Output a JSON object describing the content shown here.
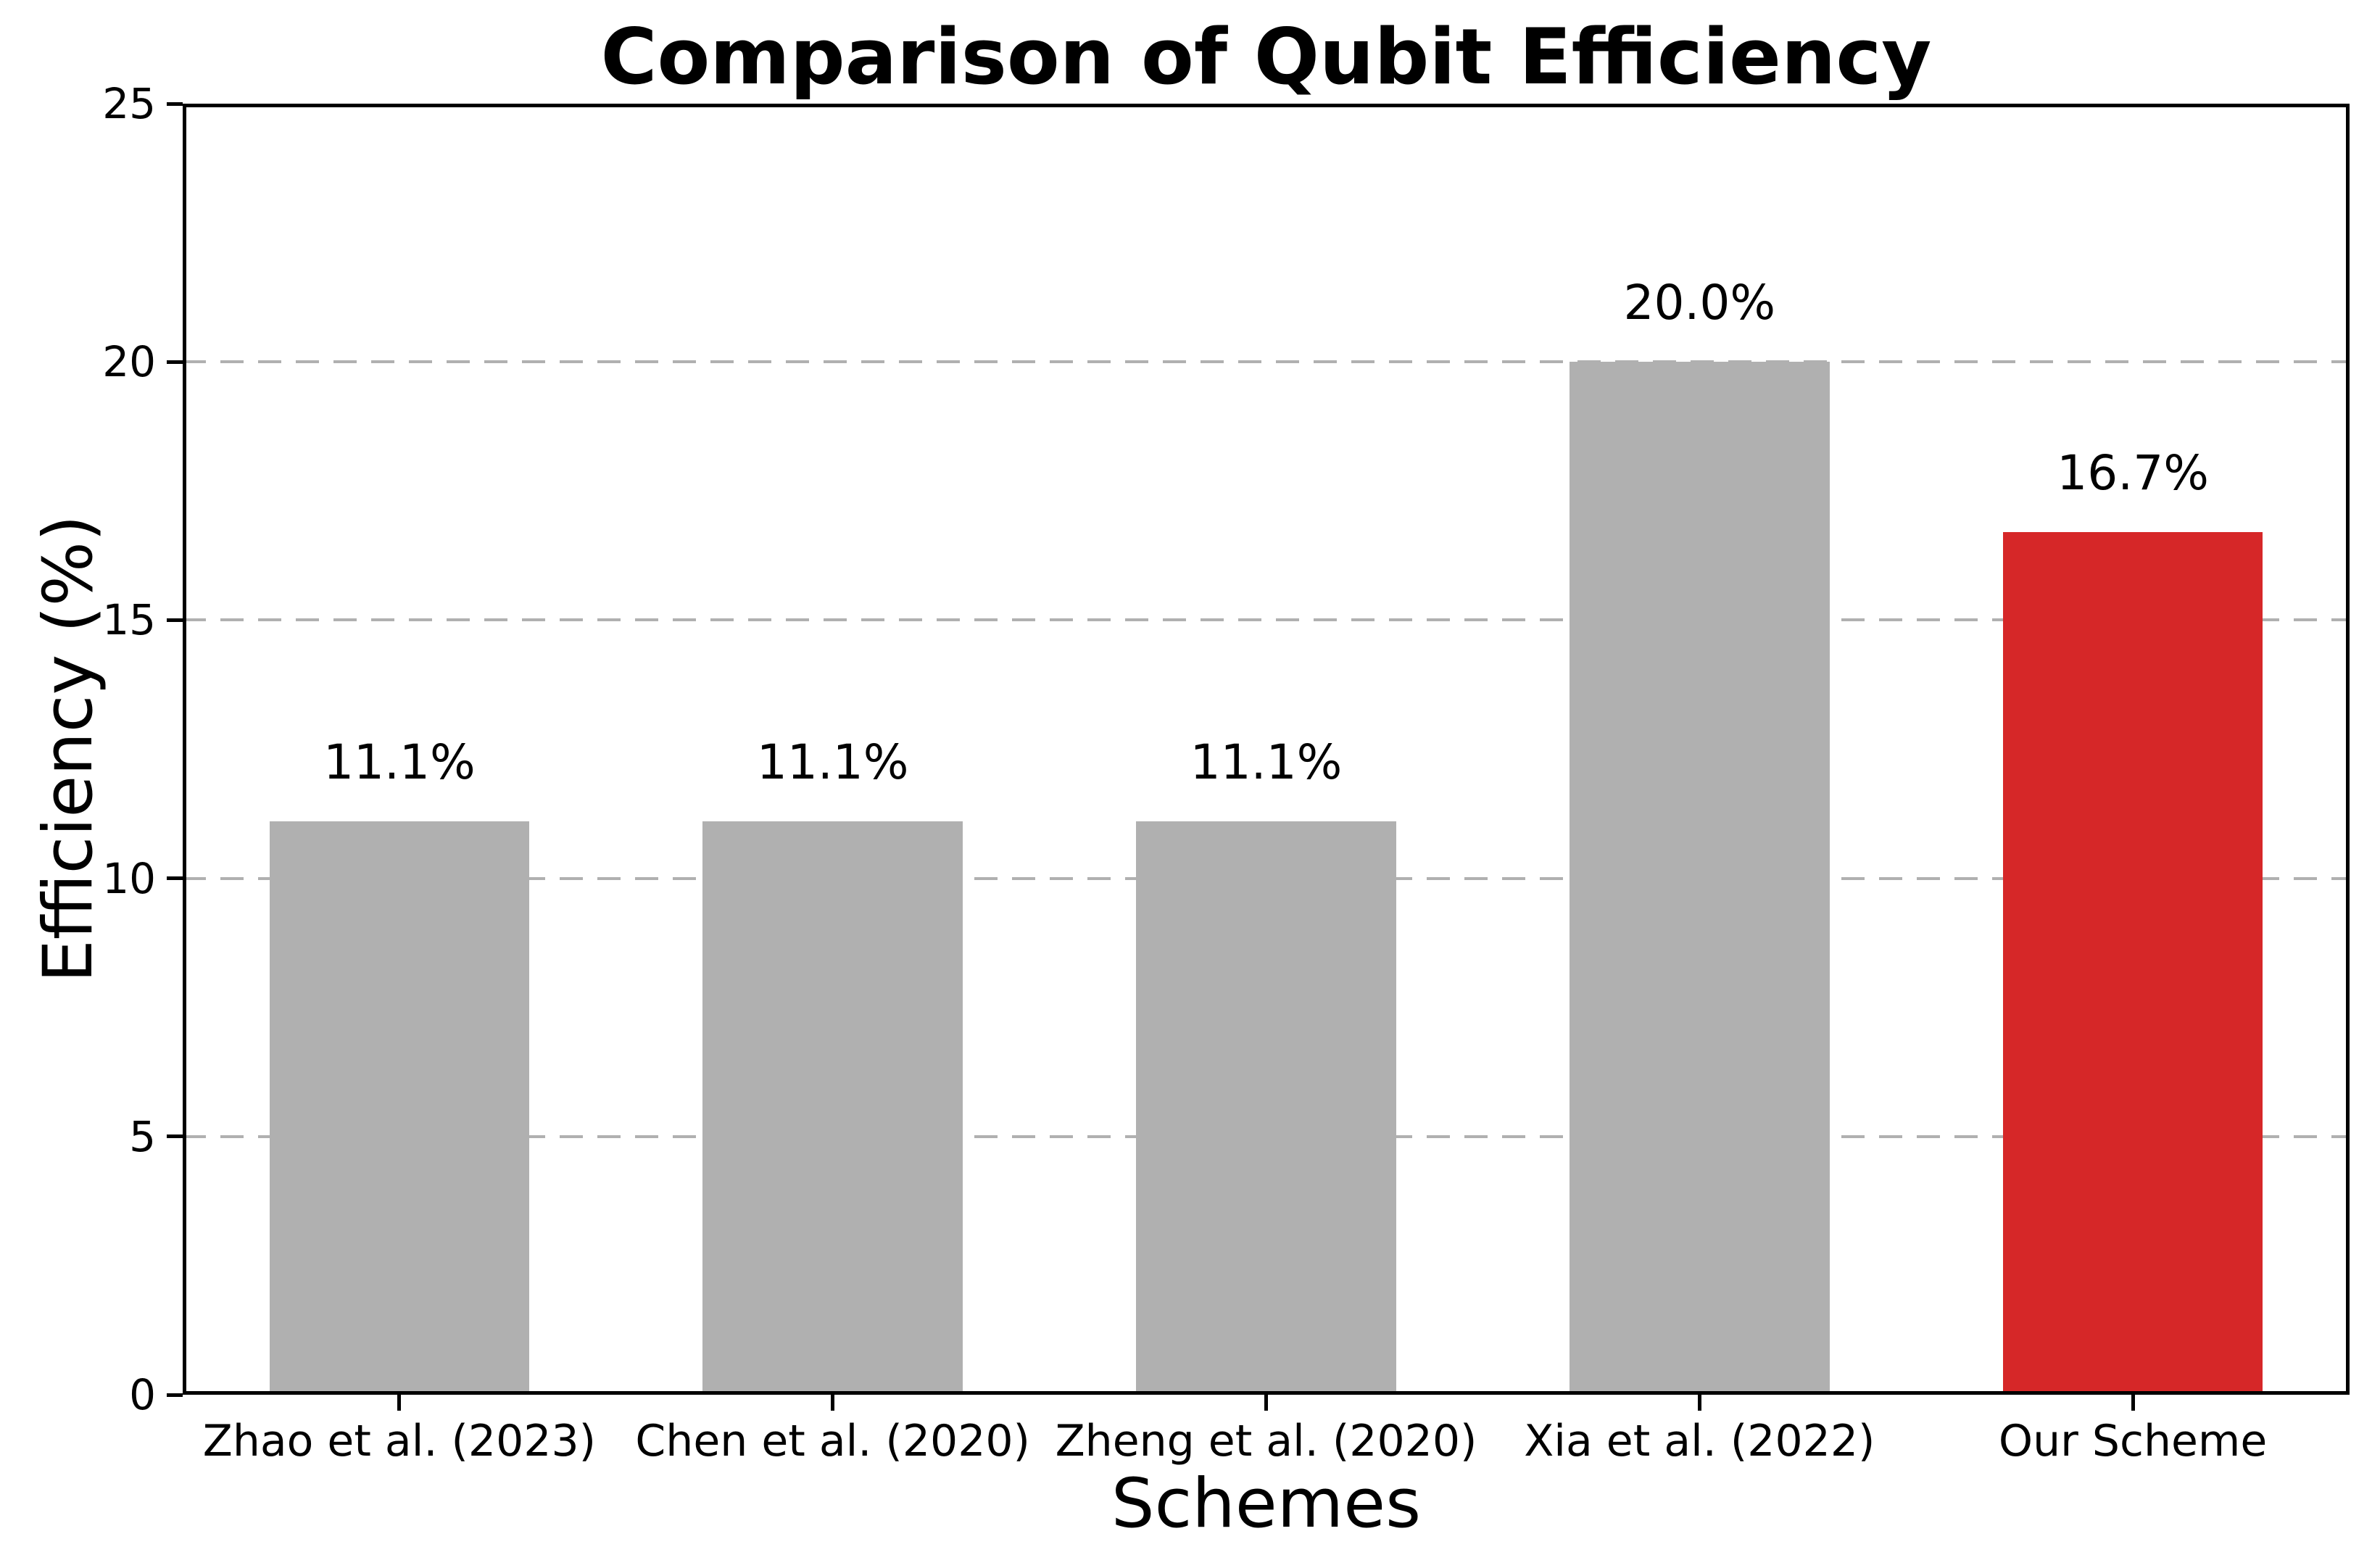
{
  "figure": {
    "title": "Comparison of Qubit Efficiency"
  },
  "chart_data": {
    "type": "bar",
    "title": "Comparison of Qubit Efficiency",
    "xlabel": "Schemes",
    "ylabel": "Efficiency (%)",
    "categories": [
      "Zhao et al. (2023)",
      "Chen et al. (2020)",
      "Zheng et al. (2020)",
      "Xia et al. (2022)",
      "Our Scheme"
    ],
    "values": [
      11.1,
      11.1,
      11.1,
      20.0,
      16.7
    ],
    "bar_labels": [
      "11.1%",
      "11.1%",
      "11.1%",
      "20.0%",
      "16.7%"
    ],
    "bar_colors": [
      "#b0b0b0",
      "#b0b0b0",
      "#b0b0b0",
      "#b0b0b0",
      "#d62728"
    ],
    "ylim": [
      0,
      25
    ],
    "yticks": [
      0,
      5,
      10,
      15,
      20,
      25
    ],
    "gridline_values": [
      5,
      10,
      15,
      20
    ],
    "grid_style": "dashed-horizontal",
    "legend": "none",
    "colors": {
      "default_bar": "#b0b0b0",
      "highlight_bar": "#d62728",
      "grid": "#b0b0b0",
      "axis": "#000000",
      "text": "#000000",
      "background": "#ffffff"
    }
  }
}
